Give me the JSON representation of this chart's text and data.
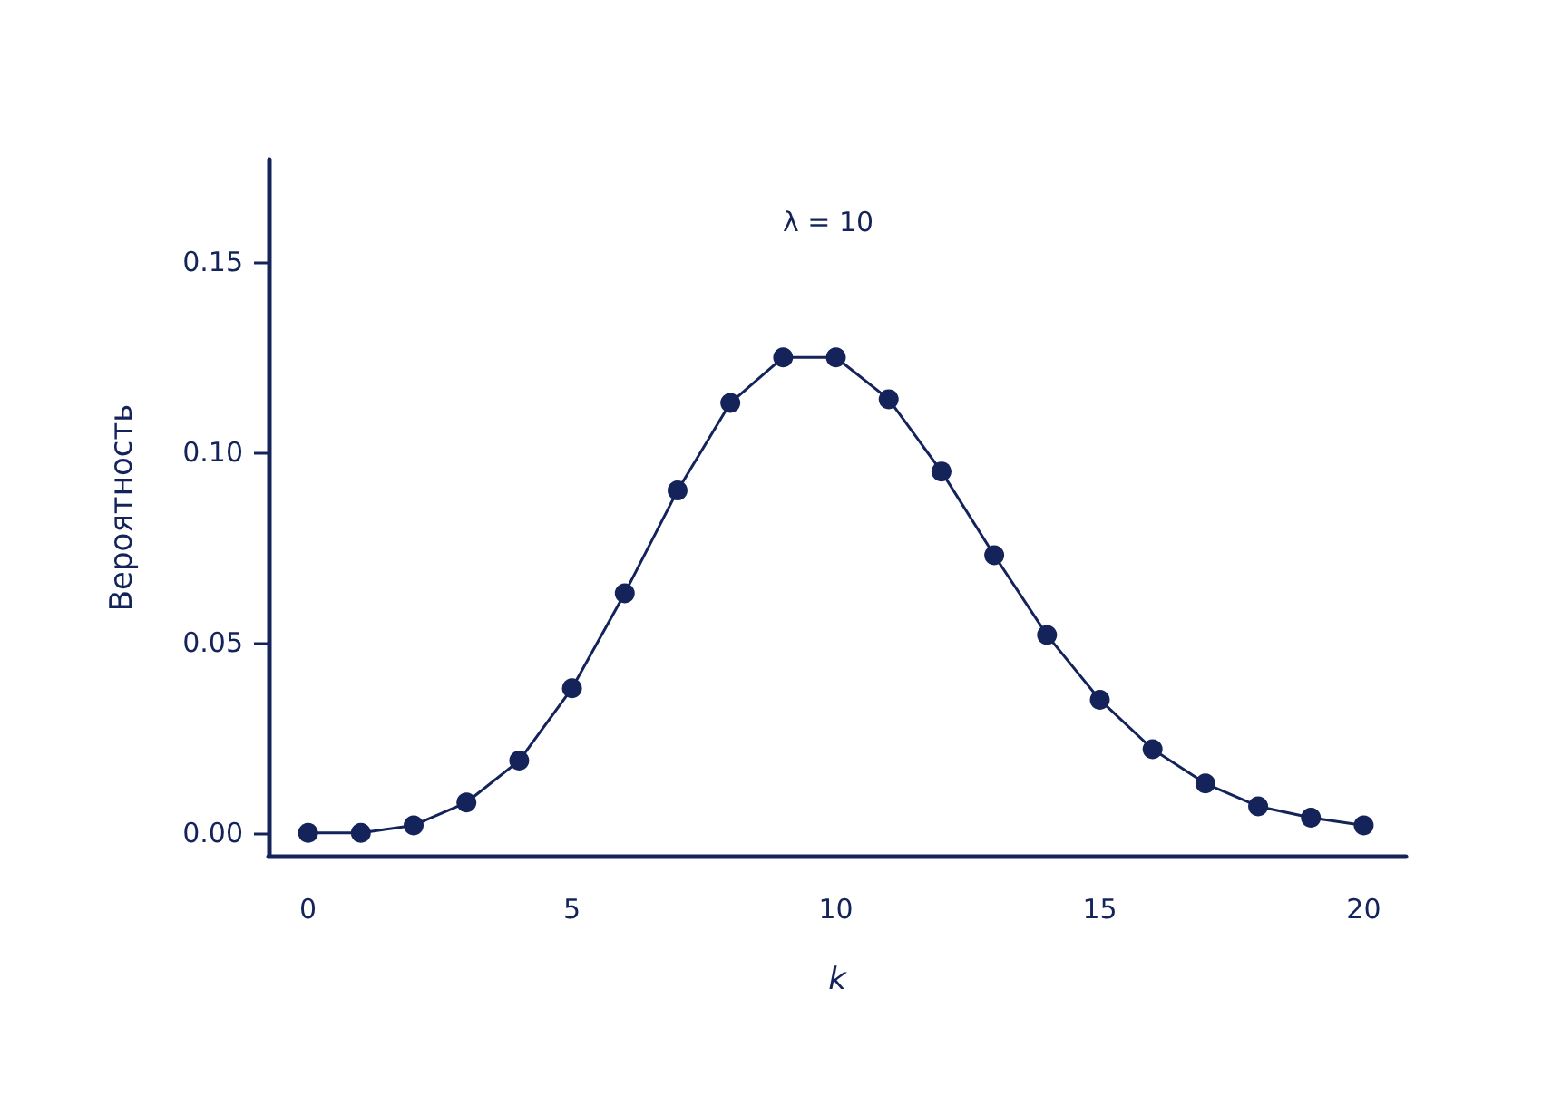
{
  "chart_data": {
    "type": "line",
    "xlabel": "k",
    "ylabel": "Вероятность",
    "annotations": [
      "λ = 10"
    ],
    "x": [
      0,
      1,
      2,
      3,
      4,
      5,
      6,
      7,
      8,
      9,
      10,
      11,
      12,
      13,
      14,
      15,
      16,
      17,
      18,
      19,
      20
    ],
    "series": [
      {
        "color": "#14245a",
        "values": [
          0.0,
          0.0,
          0.002,
          0.008,
          0.019,
          0.038,
          0.063,
          0.09,
          0.113,
          0.125,
          0.125,
          0.114,
          0.095,
          0.073,
          0.052,
          0.035,
          0.022,
          0.013,
          0.007,
          0.004,
          0.002
        ]
      }
    ],
    "xlim": [
      -0.75,
      20.8
    ],
    "xticks": [
      0,
      5,
      10,
      15,
      20
    ],
    "ylim": [
      -0.006,
      0.177
    ],
    "yticks": [
      {
        "value": 0,
        "label": "0.00"
      },
      {
        "value": 0.05,
        "label": "0.05"
      },
      {
        "value": 0.1,
        "label": "0.10"
      },
      0.15
    ],
    "grid": false,
    "marker": "circle",
    "line_style": "solid"
  }
}
